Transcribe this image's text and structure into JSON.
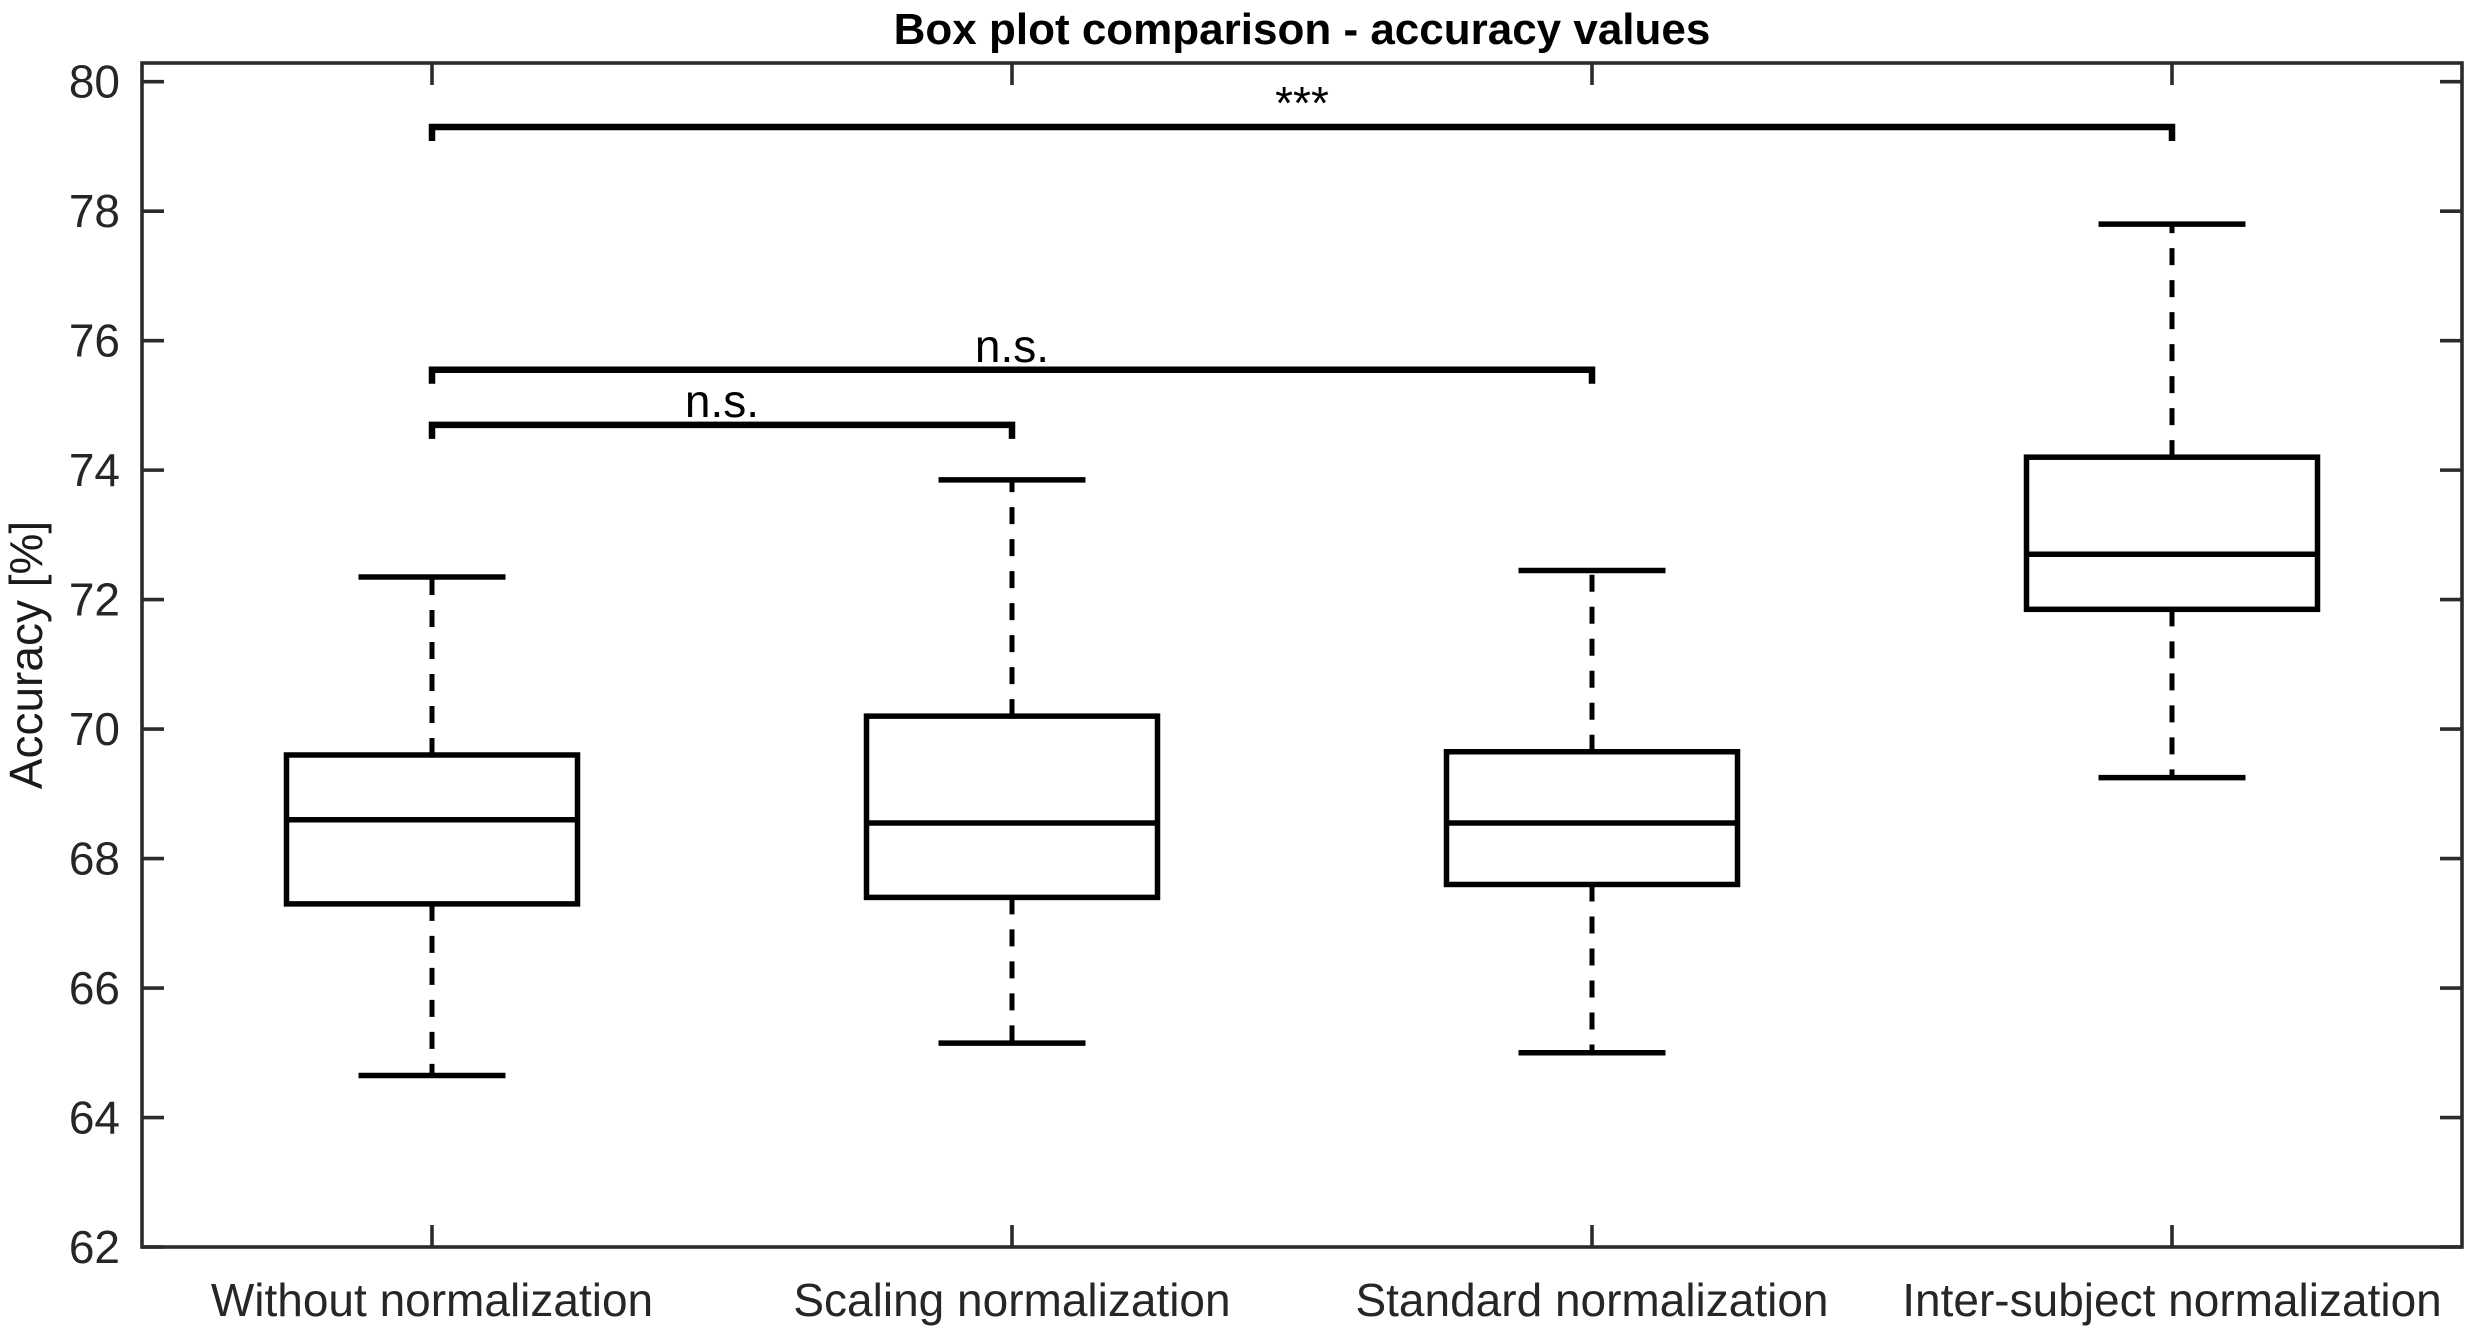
{
  "title": "Box plot comparison - accuracy values",
  "chart_data": {
    "type": "boxplot",
    "title": "Box plot comparison - accuracy values",
    "xlabel": "",
    "ylabel": "Accuracy [%]",
    "ylim": [
      62,
      80.3
    ],
    "yticks": [
      62,
      64,
      66,
      68,
      70,
      72,
      74,
      76,
      78,
      80
    ],
    "grid": false,
    "legend": null,
    "categories": [
      "Without normalization",
      "Scaling normalization",
      "Standard normalization",
      "Inter-subject normalization"
    ],
    "series": [
      {
        "name": "Without normalization",
        "whisker_low": 64.65,
        "q1": 67.3,
        "median": 68.6,
        "q3": 69.6,
        "whisker_high": 72.35
      },
      {
        "name": "Scaling normalization",
        "whisker_low": 65.15,
        "q1": 67.4,
        "median": 68.55,
        "q3": 70.2,
        "whisker_high": 73.85
      },
      {
        "name": "Standard normalization",
        "whisker_low": 65.0,
        "q1": 67.6,
        "median": 68.55,
        "q3": 69.65,
        "whisker_high": 72.45
      },
      {
        "name": "Inter-subject normalization",
        "whisker_low": 69.25,
        "q1": 71.85,
        "median": 72.7,
        "q3": 74.2,
        "whisker_high": 77.8
      }
    ],
    "annotations": [
      {
        "label": "n.s.",
        "from": 0,
        "to": 1,
        "y": 74.7
      },
      {
        "label": "n.s.",
        "from": 0,
        "to": 2,
        "y": 75.55
      },
      {
        "label": "***",
        "from": 0,
        "to": 3,
        "y": 79.3
      }
    ],
    "colors": {
      "line": "#000000",
      "axis": "#2b2b2b",
      "text": "#262626",
      "background": "#ffffff"
    }
  }
}
